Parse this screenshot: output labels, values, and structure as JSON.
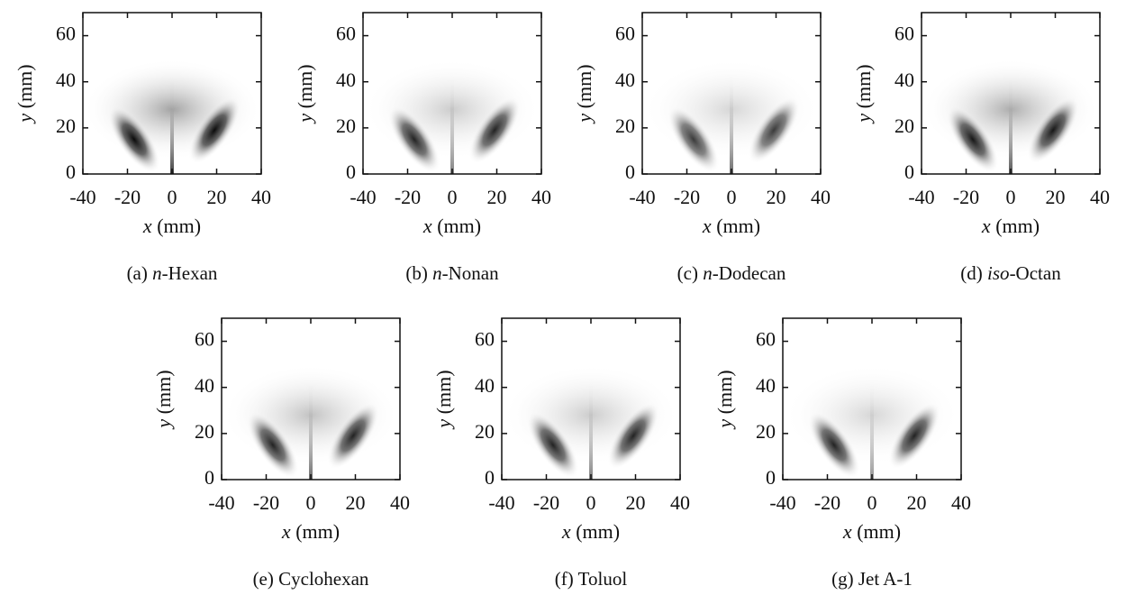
{
  "chart_data": [
    {
      "type": "image",
      "caption": {
        "label": "(a)",
        "italic": "n",
        "rest": "-Hexan"
      },
      "xlabel": {
        "var": "x",
        "unit": "(mm)"
      },
      "ylabel": {
        "var": "y",
        "unit": "(mm)"
      },
      "xlim": [
        -40,
        40
      ],
      "ylim": [
        0,
        70
      ],
      "xticks": [
        -40,
        -20,
        0,
        20,
        40
      ],
      "yticks": [
        0,
        20,
        40,
        60
      ]
    },
    {
      "type": "image",
      "caption": {
        "label": "(b)",
        "italic": "n",
        "rest": "-Nonan"
      },
      "xlabel": {
        "var": "x",
        "unit": "(mm)"
      },
      "ylabel": {
        "var": "y",
        "unit": "(mm)"
      },
      "xlim": [
        -40,
        40
      ],
      "ylim": [
        0,
        70
      ],
      "xticks": [
        -40,
        -20,
        0,
        20,
        40
      ],
      "yticks": [
        0,
        20,
        40,
        60
      ]
    },
    {
      "type": "image",
      "caption": {
        "label": "(c)",
        "italic": "n",
        "rest": "-Dodecan"
      },
      "xlabel": {
        "var": "x",
        "unit": "(mm)"
      },
      "ylabel": {
        "var": "y",
        "unit": "(mm)"
      },
      "xlim": [
        -40,
        40
      ],
      "ylim": [
        0,
        70
      ],
      "xticks": [
        -40,
        -20,
        0,
        20,
        40
      ],
      "yticks": [
        0,
        20,
        40,
        60
      ]
    },
    {
      "type": "image",
      "caption": {
        "label": "(d)",
        "italic": "iso",
        "rest": "-Octan"
      },
      "xlabel": {
        "var": "x",
        "unit": "(mm)"
      },
      "ylabel": {
        "var": "y",
        "unit": "(mm)"
      },
      "xlim": [
        -40,
        40
      ],
      "ylim": [
        0,
        70
      ],
      "xticks": [
        -40,
        -20,
        0,
        20,
        40
      ],
      "yticks": [
        0,
        20,
        40,
        60
      ]
    },
    {
      "type": "image",
      "caption": {
        "label": "(e)",
        "rest": "Cyclohexan"
      },
      "xlabel": {
        "var": "x",
        "unit": "(mm)"
      },
      "ylabel": {
        "var": "y",
        "unit": "(mm)"
      },
      "xlim": [
        -40,
        40
      ],
      "ylim": [
        0,
        70
      ],
      "xticks": [
        -40,
        -20,
        0,
        20,
        40
      ],
      "yticks": [
        0,
        20,
        40,
        60
      ]
    },
    {
      "type": "image",
      "caption": {
        "label": "(f)",
        "rest": "Toluol"
      },
      "xlabel": {
        "var": "x",
        "unit": "(mm)"
      },
      "ylabel": {
        "var": "y",
        "unit": "(mm)"
      },
      "xlim": [
        -40,
        40
      ],
      "ylim": [
        0,
        70
      ],
      "xticks": [
        -40,
        -20,
        0,
        20,
        40
      ],
      "yticks": [
        0,
        20,
        40,
        60
      ]
    },
    {
      "type": "image",
      "caption": {
        "label": "(g)",
        "rest": "Jet A-1"
      },
      "xlabel": {
        "var": "x",
        "unit": "(mm)"
      },
      "ylabel": {
        "var": "y",
        "unit": "(mm)"
      },
      "xlim": [
        -40,
        40
      ],
      "ylim": [
        0,
        70
      ],
      "xticks": [
        -40,
        -20,
        0,
        20,
        40
      ],
      "yticks": [
        0,
        20,
        40,
        60
      ]
    }
  ]
}
